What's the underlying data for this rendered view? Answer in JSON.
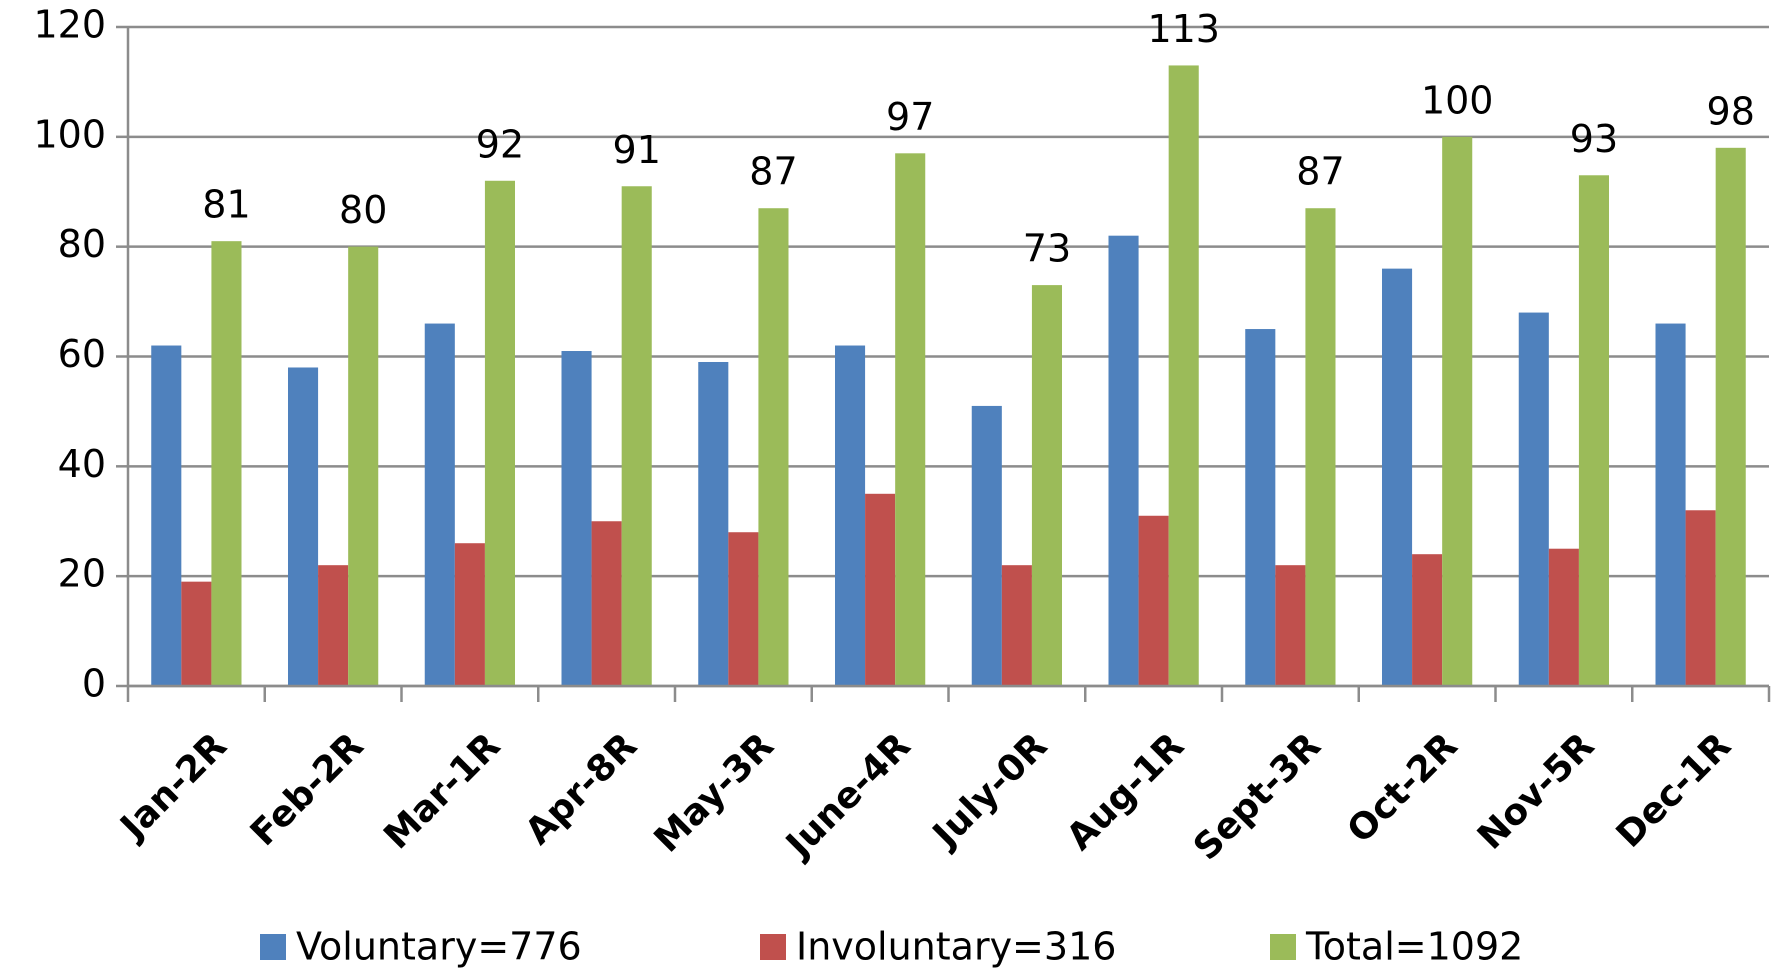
{
  "chart_data": {
    "type": "bar",
    "categories": [
      "Jan-2R",
      "Feb-2R",
      "Mar-1R",
      "Apr-8R",
      "May-3R",
      "June-4R",
      "July-0R",
      "Aug-1R",
      "Sept-3R",
      "Oct-2R",
      "Nov-5R",
      "Dec-1R"
    ],
    "series": [
      {
        "name": "Voluntary=776",
        "color": "#4f81bd",
        "values": [
          62,
          58,
          66,
          61,
          59,
          62,
          51,
          82,
          65,
          76,
          68,
          66
        ]
      },
      {
        "name": "Involuntary=316",
        "color": "#c0504d",
        "values": [
          19,
          22,
          26,
          30,
          28,
          35,
          22,
          31,
          22,
          24,
          25,
          32
        ]
      },
      {
        "name": "Total=1092",
        "color": "#9bbb59",
        "values": [
          81,
          80,
          92,
          91,
          87,
          97,
          73,
          113,
          87,
          100,
          93,
          98
        ],
        "data_labels": true
      }
    ],
    "ylim": [
      0,
      120
    ],
    "yticks": [
      0,
      20,
      40,
      60,
      80,
      100,
      120
    ],
    "grid": true,
    "legend": "bottom"
  }
}
